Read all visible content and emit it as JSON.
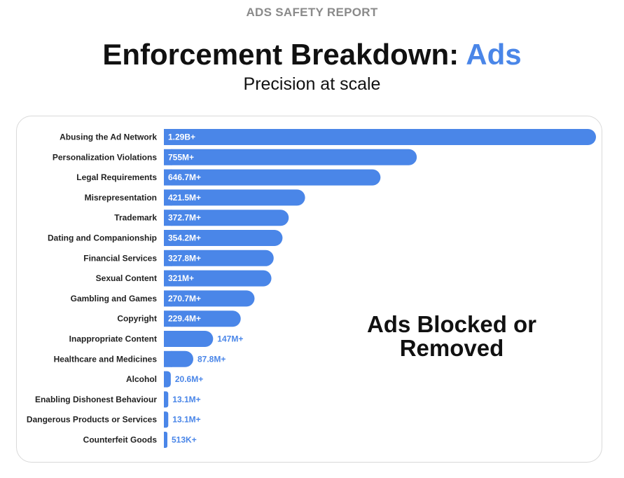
{
  "header": {
    "kicker": "ADS SAFETY REPORT",
    "title_main": "Enforcement Breakdown: ",
    "title_accent": "Ads",
    "subtitle": "Precision at scale"
  },
  "callout": {
    "line1": "Ads Blocked or",
    "line2": "Removed"
  },
  "colors": {
    "bar": "#4a86e8",
    "accent": "#4a86e8"
  },
  "chart_data": {
    "type": "bar",
    "orientation": "horizontal",
    "title": "",
    "xlabel": "",
    "ylabel": "",
    "xlim": [
      0,
      1290
    ],
    "grid": false,
    "categories": [
      "Abusing the Ad Network",
      "Personalization Violations",
      "Legal Requirements",
      "Misrepresentation",
      "Trademark",
      "Dating and Companionship",
      "Financial Services",
      "Sexual Content",
      "Gambling and Games",
      "Copyright",
      "Inappropriate Content",
      "Healthcare and Medicines",
      "Alcohol",
      "Enabling Dishonest Behaviour",
      "Dangerous Products or Services",
      "Counterfeit Goods"
    ],
    "values": [
      1290,
      755,
      646.7,
      421.5,
      372.7,
      354.2,
      327.8,
      321,
      270.7,
      229.4,
      147,
      87.8,
      20.6,
      13.1,
      13.1,
      0.513
    ],
    "value_unit": "millions",
    "data_labels": [
      "1.29B+",
      "755M+",
      "646.7M+",
      "421.5M+",
      "372.7M+",
      "354.2M+",
      "327.8M+",
      "321M+",
      "270.7M+",
      "229.4M+",
      "147M+",
      "87.8M+",
      "20.6M+",
      "13.1M+",
      "13.1M+",
      "513K+"
    ]
  }
}
